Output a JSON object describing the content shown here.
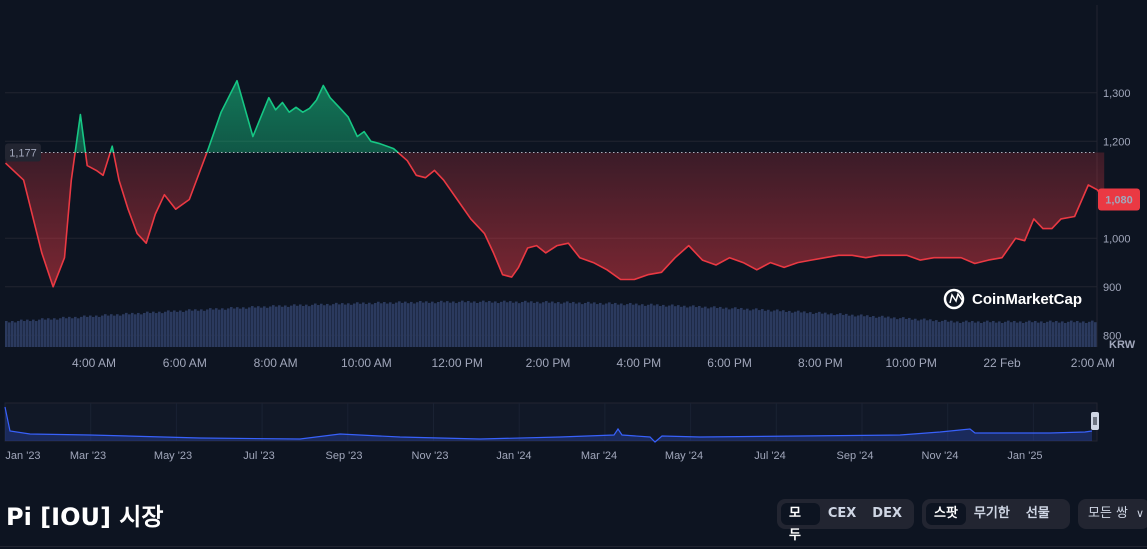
{
  "chart_data": {
    "type": "area",
    "currency_label": "KRW",
    "reference_value": 1177,
    "reference_label": "1,177",
    "current_value": 1080,
    "current_label": "1,080",
    "y_ticks": [
      "1,300",
      "1,200",
      "1,000",
      "900",
      "800"
    ],
    "y_tick_values": [
      1300,
      1200,
      1000,
      900,
      800
    ],
    "ylim": [
      780,
      1380
    ],
    "x_ticks": [
      "4:00 AM",
      "6:00 AM",
      "8:00 AM",
      "10:00 AM",
      "12:00 PM",
      "2:00 PM",
      "4:00 PM",
      "6:00 PM",
      "8:00 PM",
      "10:00 PM",
      "22 Feb",
      "2:00 AM"
    ],
    "x_tick_hours": [
      4,
      6,
      8,
      10,
      12,
      14,
      16,
      18,
      20,
      22,
      24,
      26
    ],
    "series": [
      {
        "x": [
          2.05,
          2.45,
          2.85,
          3.1,
          3.35,
          3.5,
          3.7,
          3.85,
          4.05,
          4.2,
          4.4,
          4.55,
          4.75,
          4.95,
          5.15,
          5.35,
          5.55,
          5.8,
          6.1,
          6.5,
          6.8,
          7.15,
          7.5,
          7.85,
          8.0,
          8.15,
          8.3,
          8.45,
          8.6,
          8.75,
          8.9,
          9.05,
          9.2,
          9.4,
          9.6,
          9.8,
          9.95,
          10.1,
          10.3,
          10.6,
          10.9,
          11.1,
          11.3,
          11.5,
          11.7,
          12.0,
          12.3,
          12.6,
          12.8,
          13.0,
          13.2,
          13.35,
          13.55,
          13.75,
          13.95,
          14.2,
          14.45,
          14.7,
          15.0,
          15.3,
          15.6,
          15.9,
          16.2,
          16.5,
          16.8,
          17.1,
          17.4,
          17.7,
          18.0,
          18.3,
          18.6,
          18.9,
          19.2,
          19.5,
          19.8,
          20.1,
          20.4,
          20.7,
          21.0,
          21.3,
          21.6,
          21.9,
          22.2,
          22.5,
          22.8,
          23.1,
          23.4,
          23.7,
          24.0,
          24.3,
          24.5,
          24.7,
          24.9,
          25.1,
          25.3,
          25.6,
          25.9,
          26.1,
          26.25
        ],
        "values": [
          1155,
          1120,
          970,
          900,
          960,
          1120,
          1255,
          1150,
          1140,
          1130,
          1190,
          1120,
          1060,
          1010,
          990,
          1050,
          1090,
          1060,
          1080,
          1180,
          1260,
          1325,
          1210,
          1290,
          1265,
          1280,
          1260,
          1270,
          1260,
          1268,
          1285,
          1315,
          1290,
          1270,
          1250,
          1210,
          1220,
          1200,
          1195,
          1185,
          1160,
          1130,
          1125,
          1140,
          1120,
          1080,
          1040,
          1010,
          970,
          925,
          920,
          940,
          980,
          985,
          970,
          985,
          990,
          960,
          950,
          935,
          915,
          915,
          925,
          930,
          960,
          985,
          955,
          945,
          960,
          950,
          935,
          950,
          940,
          950,
          955,
          960,
          965,
          965,
          960,
          965,
          965,
          965,
          955,
          960,
          960,
          960,
          948,
          955,
          960,
          1000,
          995,
          1040,
          1020,
          1020,
          1040,
          1045,
          1110,
          1100,
          1080
        ]
      }
    ],
    "navigator_ticks": [
      "Jan '23",
      "Mar '23",
      "May '23",
      "Jul '23",
      "Sep '23",
      "Nov '23",
      "Jan '24",
      "Mar '24",
      "May '24",
      "Jul '24",
      "Sep '24",
      "Nov '24",
      "Jan '25"
    ],
    "watermark": "CoinMarketCap",
    "colors": {
      "up": "#16c784",
      "down": "#ea3943",
      "volume": "#2b3a5e",
      "grid": "#222531",
      "navigator_line": "#3861fb"
    }
  },
  "title": "Pi [IOU] 시장",
  "filters": {
    "type_options": [
      "모두",
      "CEX",
      "DEX"
    ],
    "type_active": 0,
    "market_options": [
      "스팟",
      "무기한",
      "선물"
    ],
    "market_active": 0
  },
  "pair_dropdown": {
    "label": "모든 쌍",
    "icon": "chevron-down-icon"
  }
}
